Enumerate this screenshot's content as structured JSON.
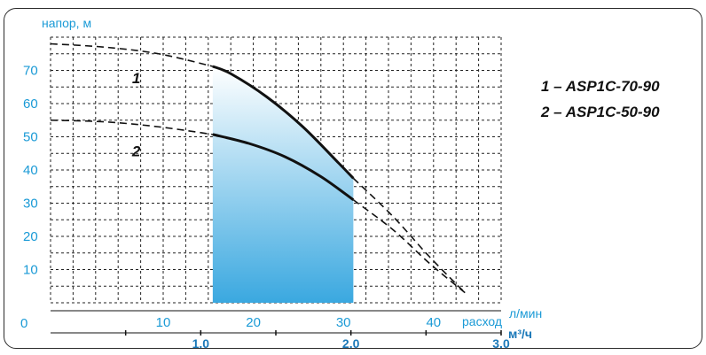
{
  "chart_data": {
    "type": "line",
    "ylabel": "напор, м",
    "xlabel": "расход",
    "x_unit": "л/мин",
    "x2_unit": "м³/ч",
    "xlim": [
      0,
      50
    ],
    "ylim": [
      0,
      80
    ],
    "y_ticks": [
      10,
      20,
      30,
      40,
      50,
      60,
      70
    ],
    "y_zero_label": "0",
    "x_ticks": [
      10,
      20,
      30,
      40
    ],
    "x2_ticks": [
      {
        "label": "1.0",
        "value": 1.0
      },
      {
        "label": "2.0",
        "value": 2.0
      },
      {
        "label": "3.0",
        "value": 3.0
      }
    ],
    "grid": true,
    "working_range": [
      18.0,
      33.6
    ],
    "series": [
      {
        "name": "ASP1C-70-90",
        "label": "1",
        "solid": [
          [
            18.0,
            71.2
          ],
          [
            20,
            69
          ],
          [
            24,
            62
          ],
          [
            28,
            53
          ],
          [
            32,
            42
          ],
          [
            33.6,
            37.5
          ]
        ],
        "dashed_left": [
          [
            0,
            78.0
          ],
          [
            6,
            77
          ],
          [
            12,
            75
          ],
          [
            18.0,
            71.2
          ]
        ],
        "dashed_right": [
          [
            33.6,
            37.5
          ],
          [
            38,
            26
          ],
          [
            42,
            14
          ],
          [
            46,
            3
          ]
        ]
      },
      {
        "name": "ASP1C-50-90",
        "label": "2",
        "solid": [
          [
            18.0,
            50.7
          ],
          [
            22,
            48
          ],
          [
            26,
            44
          ],
          [
            30,
            38
          ],
          [
            33.6,
            31
          ]
        ],
        "dashed_left": [
          [
            0,
            55.0
          ],
          [
            6,
            54.5
          ],
          [
            12,
            53
          ],
          [
            18.0,
            50.7
          ]
        ],
        "dashed_right": [
          [
            33.6,
            31
          ],
          [
            38,
            22
          ],
          [
            42,
            12
          ],
          [
            46,
            3
          ]
        ]
      }
    ],
    "legend": [
      "1 – ASP1C-70-90",
      "2 – ASP1C-50-90"
    ],
    "colors": {
      "axis_text": "#1a9ad6",
      "curve": "#111111",
      "fill_top": "#ffffff",
      "fill_bottom": "#3aa8e0",
      "grid": "#222222"
    }
  }
}
